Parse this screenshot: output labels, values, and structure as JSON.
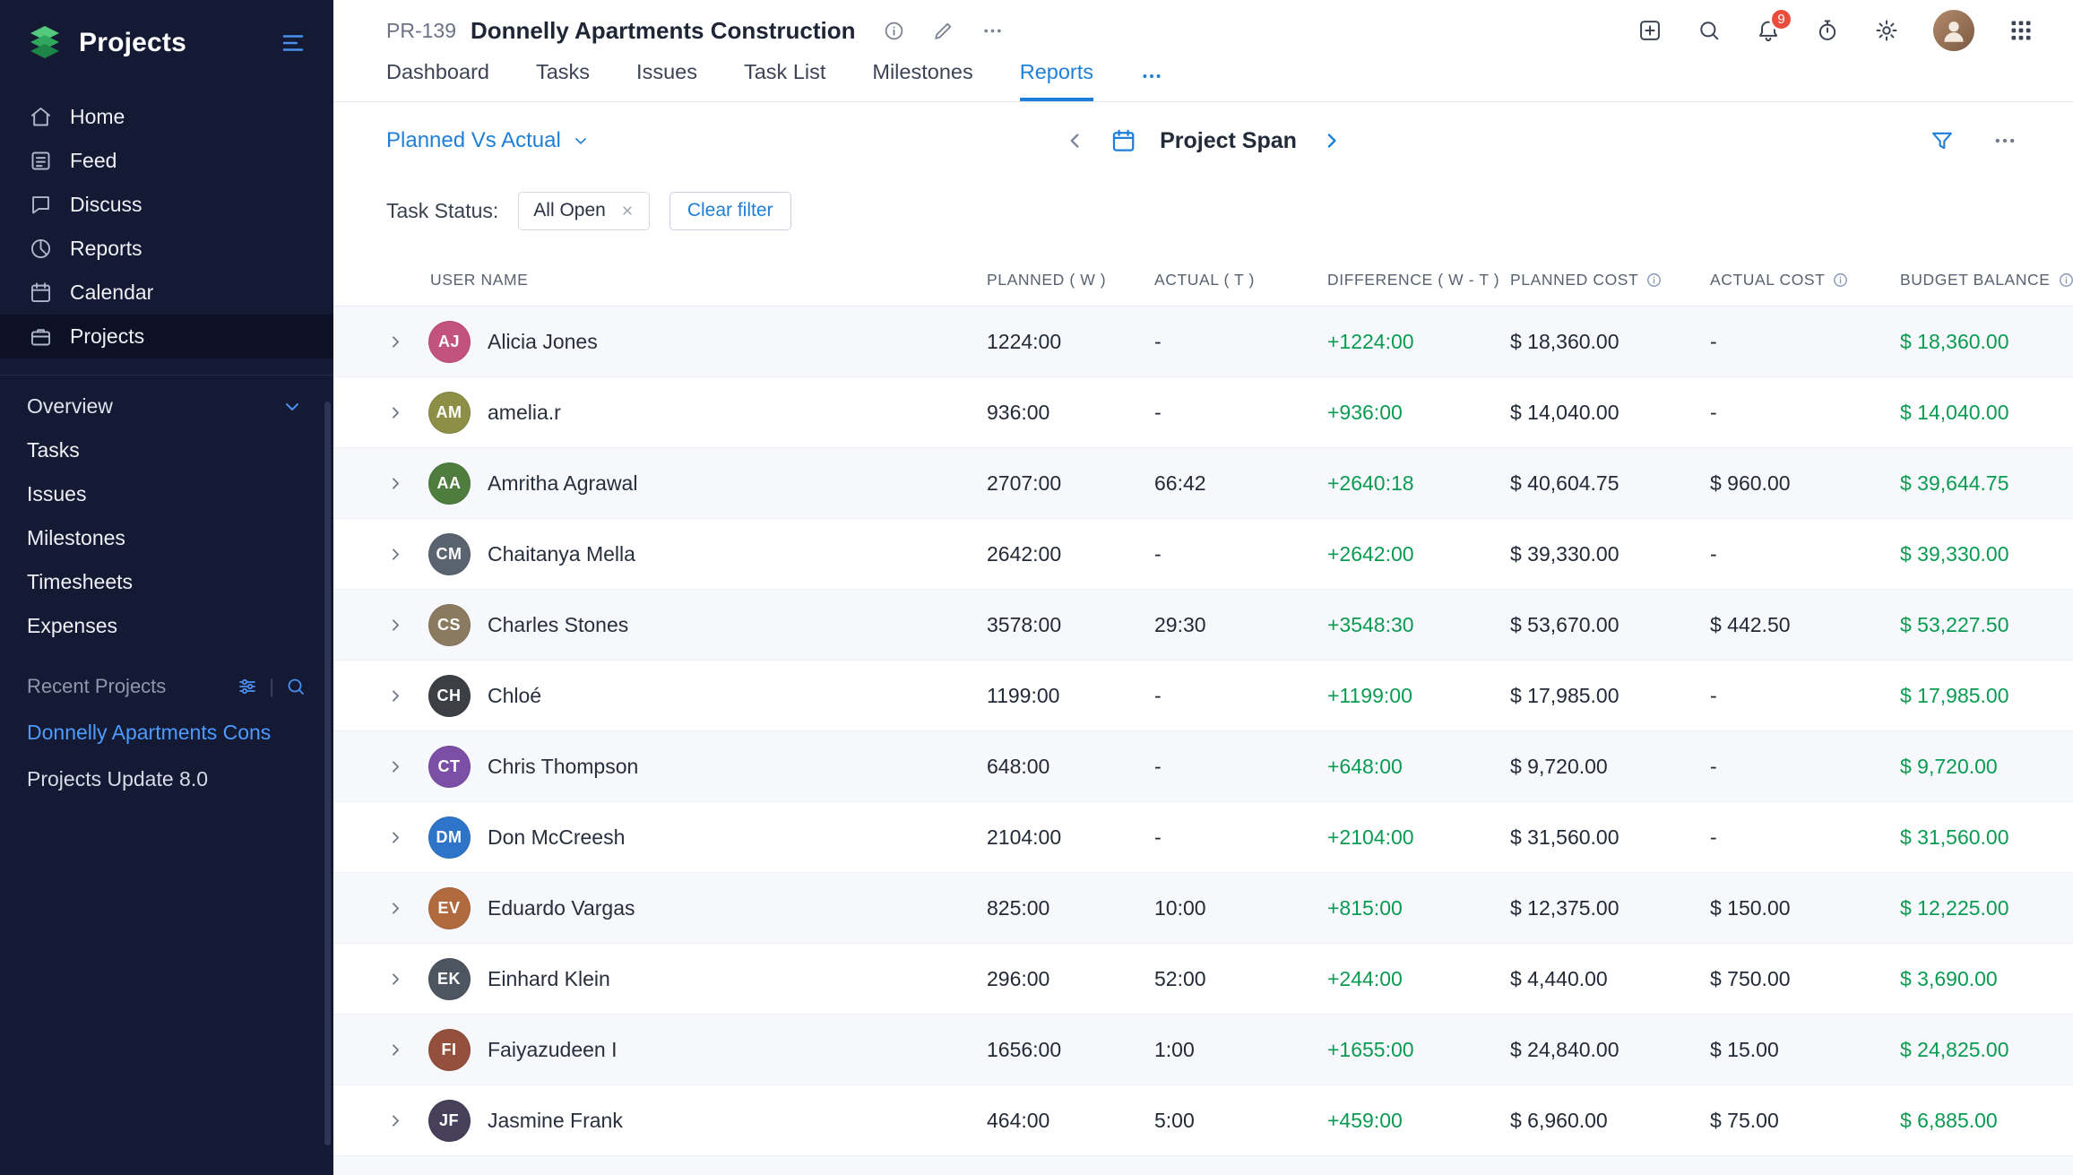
{
  "brand": {
    "name": "Projects"
  },
  "sidebar": {
    "nav": [
      {
        "label": "Home"
      },
      {
        "label": "Feed"
      },
      {
        "label": "Discuss"
      },
      {
        "label": "Reports"
      },
      {
        "label": "Calendar"
      },
      {
        "label": "Projects",
        "active": true
      }
    ],
    "overview_label": "Overview",
    "overview_items": [
      {
        "label": "Tasks"
      },
      {
        "label": "Issues"
      },
      {
        "label": "Milestones"
      },
      {
        "label": "Timesheets"
      },
      {
        "label": "Expenses"
      }
    ],
    "recent_label": "Recent Projects",
    "recent_items": [
      {
        "label": "Donnelly Apartments Cons",
        "active": true
      },
      {
        "label": "Projects Update 8.0",
        "active": false
      }
    ]
  },
  "header": {
    "project_code": "PR-139",
    "project_title": "Donnelly Apartments Construction",
    "notification_count": "9",
    "tabs": [
      {
        "label": "Dashboard"
      },
      {
        "label": "Tasks"
      },
      {
        "label": "Issues"
      },
      {
        "label": "Task List"
      },
      {
        "label": "Milestones"
      },
      {
        "label": "Reports",
        "active": true
      }
    ]
  },
  "toolbar": {
    "report_selector": "Planned Vs Actual",
    "range_label": "Project Span"
  },
  "filters": {
    "label": "Task Status:",
    "chip": "All Open",
    "clear_button": "Clear filter"
  },
  "table": {
    "columns": {
      "user": "USER NAME",
      "planned": "PLANNED ( W )",
      "actual": "ACTUAL ( T )",
      "difference": "DIFFERENCE ( W - T )",
      "planned_cost": "PLANNED COST",
      "actual_cost": "ACTUAL COST",
      "budget_balance": "BUDGET BALANCE"
    },
    "rows": [
      {
        "name": "Alicia Jones",
        "initials": "AJ",
        "avatar_color": "#c2527e",
        "planned": "1224:00",
        "actual": "-",
        "difference": "+1224:00",
        "planned_cost": "$ 18,360.00",
        "actual_cost": "-",
        "budget_balance": "$ 18,360.00"
      },
      {
        "name": "amelia.r",
        "initials": "AM",
        "avatar_color": "#8c8f45",
        "planned": "936:00",
        "actual": "-",
        "difference": "+936:00",
        "planned_cost": "$ 14,040.00",
        "actual_cost": "-",
        "budget_balance": "$ 14,040.00"
      },
      {
        "name": "Amritha Agrawal",
        "initials": "AA",
        "avatar_color": "#4e7d3e",
        "planned": "2707:00",
        "actual": "66:42",
        "difference": "+2640:18",
        "planned_cost": "$ 40,604.75",
        "actual_cost": "$ 960.00",
        "budget_balance": "$ 39,644.75"
      },
      {
        "name": "Chaitanya Mella",
        "initials": "CM",
        "avatar_color": "#5a6470",
        "planned": "2642:00",
        "actual": "-",
        "difference": "+2642:00",
        "planned_cost": "$ 39,330.00",
        "actual_cost": "-",
        "budget_balance": "$ 39,330.00"
      },
      {
        "name": "Charles Stones",
        "initials": "CS",
        "avatar_color": "#8a7a5f",
        "planned": "3578:00",
        "actual": "29:30",
        "difference": "+3548:30",
        "planned_cost": "$ 53,670.00",
        "actual_cost": "$ 442.50",
        "budget_balance": "$ 53,227.50"
      },
      {
        "name": "Chloé",
        "initials": "CH",
        "avatar_color": "#3c3f46",
        "planned": "1199:00",
        "actual": "-",
        "difference": "+1199:00",
        "planned_cost": "$ 17,985.00",
        "actual_cost": "-",
        "budget_balance": "$ 17,985.00"
      },
      {
        "name": "Chris Thompson",
        "initials": "CT",
        "avatar_color": "#7b4fa6",
        "planned": "648:00",
        "actual": "-",
        "difference": "+648:00",
        "planned_cost": "$ 9,720.00",
        "actual_cost": "-",
        "budget_balance": "$ 9,720.00"
      },
      {
        "name": "Don McCreesh",
        "initials": "DM",
        "avatar_color": "#2e74c8",
        "planned": "2104:00",
        "actual": "-",
        "difference": "+2104:00",
        "planned_cost": "$ 31,560.00",
        "actual_cost": "-",
        "budget_balance": "$ 31,560.00"
      },
      {
        "name": "Eduardo Vargas",
        "initials": "EV",
        "avatar_color": "#b06a3e",
        "planned": "825:00",
        "actual": "10:00",
        "difference": "+815:00",
        "planned_cost": "$ 12,375.00",
        "actual_cost": "$ 150.00",
        "budget_balance": "$ 12,225.00"
      },
      {
        "name": "Einhard Klein",
        "initials": "EK",
        "avatar_color": "#4d5560",
        "planned": "296:00",
        "actual": "52:00",
        "difference": "+244:00",
        "planned_cost": "$ 4,440.00",
        "actual_cost": "$ 750.00",
        "budget_balance": "$ 3,690.00"
      },
      {
        "name": "Faiyazudeen I",
        "initials": "FI",
        "avatar_color": "#94503c",
        "planned": "1656:00",
        "actual": "1:00",
        "difference": "+1655:00",
        "planned_cost": "$ 24,840.00",
        "actual_cost": "$ 15.00",
        "budget_balance": "$ 24,825.00"
      },
      {
        "name": "Jasmine Frank",
        "initials": "JF",
        "avatar_color": "#46405a",
        "planned": "464:00",
        "actual": "5:00",
        "difference": "+459:00",
        "planned_cost": "$ 6,960.00",
        "actual_cost": "$ 75.00",
        "budget_balance": "$ 6,885.00"
      }
    ]
  },
  "colors": {
    "accent": "#1e7fd9",
    "green": "#0a9b52",
    "badge_red": "#eb4d3d",
    "sidebar_bg": "#141a33"
  }
}
